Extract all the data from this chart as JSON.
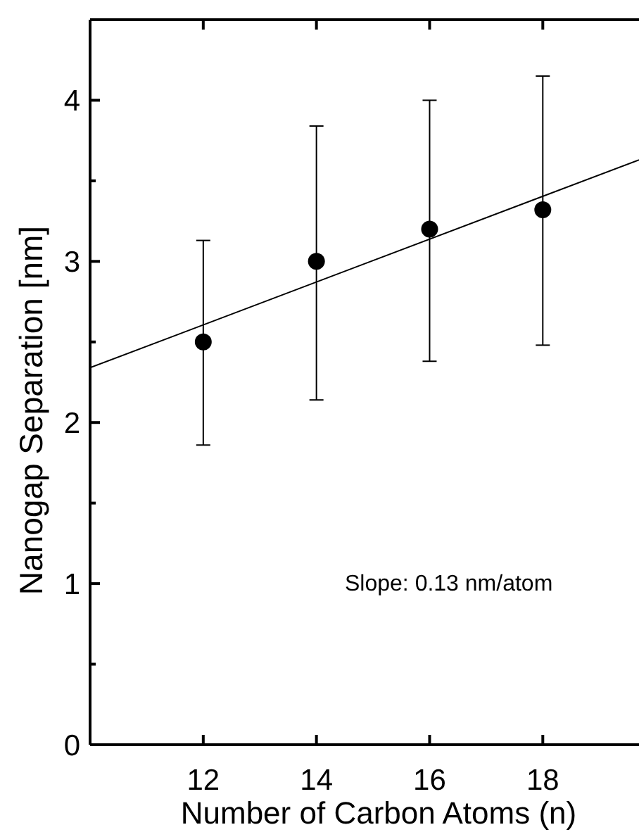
{
  "chart_data": {
    "type": "scatter",
    "xlabel": "Number of Carbon Atoms (n)",
    "ylabel": "Nanogap Separation [nm]",
    "xlim": [
      10,
      19.7
    ],
    "xticks": [
      12,
      14,
      16,
      18
    ],
    "ylim": [
      0,
      4.5
    ],
    "yticks": [
      0,
      {
        "value": 0.5,
        "label": null
      },
      1,
      {
        "value": 1.5,
        "label": null
      },
      2,
      {
        "value": 2.5,
        "label": null
      },
      3,
      {
        "value": 3.5,
        "label": null
      },
      4
    ],
    "marker": "circle",
    "grid": false,
    "series": [
      {
        "color": "#000000",
        "x": [
          12,
          14,
          16,
          18
        ],
        "values": [
          2.5,
          3.0,
          3.2,
          3.32
        ],
        "errors": [
          [
            1.86,
            3.13
          ],
          [
            2.14,
            3.84
          ],
          [
            2.38,
            4.0
          ],
          [
            2.48,
            4.15
          ]
        ]
      },
      {
        "type": "line",
        "color": "#000000",
        "x": [
          10,
          19.7
        ],
        "values": [
          2.34,
          3.63
        ],
        "marker": "none",
        "line_style": "solid"
      }
    ],
    "annotations": [
      "Slope: 0.13 nm/atom"
    ]
  }
}
